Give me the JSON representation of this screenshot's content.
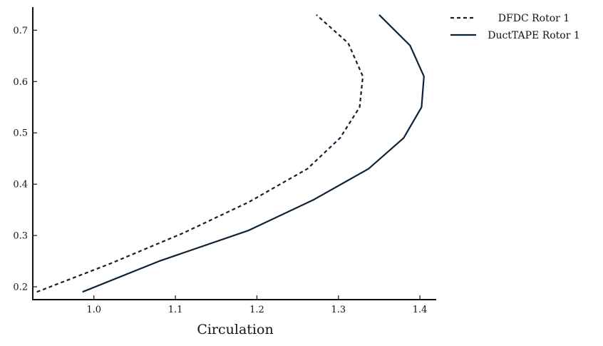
{
  "chart_data": {
    "type": "line",
    "title": "",
    "xlabel": "Circulation",
    "ylabel": "",
    "xlim": [
      0.925,
      1.42
    ],
    "ylim": [
      0.175,
      0.745
    ],
    "xticks": [
      1.0,
      1.1,
      1.2,
      1.3,
      1.4
    ],
    "xtick_labels": [
      "1.0",
      "1.1",
      "1.2",
      "1.3",
      "1.4"
    ],
    "yticks": [
      0.2,
      0.3,
      0.4,
      0.5,
      0.6,
      0.7
    ],
    "ytick_labels": [
      "0.2",
      "0.3",
      "0.4",
      "0.5",
      "0.6",
      "0.7"
    ],
    "grid": false,
    "legend_position": "top-right, outside plot",
    "line_color": "#0d2236",
    "series": [
      {
        "name": "DFDC Rotor 1",
        "style": "dashed",
        "x": [
          0.93,
          1.02,
          1.11,
          1.19,
          1.262,
          1.302,
          1.326,
          1.33,
          1.312,
          1.273
        ],
        "y": [
          0.19,
          0.245,
          0.305,
          0.365,
          0.43,
          0.49,
          0.55,
          0.61,
          0.675,
          0.73
        ]
      },
      {
        "name": "DuctTAPE Rotor 1",
        "style": "solid",
        "x": [
          0.986,
          1.08,
          1.19,
          1.27,
          1.337,
          1.38,
          1.402,
          1.405,
          1.388,
          1.35
        ],
        "y": [
          0.19,
          0.25,
          0.31,
          0.37,
          0.43,
          0.49,
          0.55,
          0.61,
          0.67,
          0.73
        ]
      }
    ]
  }
}
